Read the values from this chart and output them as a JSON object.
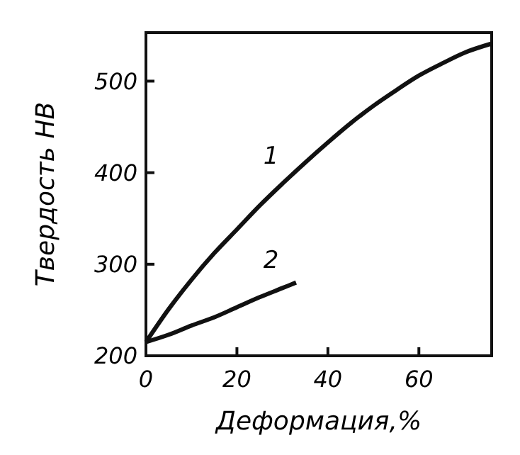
{
  "chart_data": {
    "type": "line",
    "xlabel": "Деформация,%",
    "ylabel": "Твердость НВ",
    "xlim": [
      0,
      76
    ],
    "ylim": [
      200,
      553
    ],
    "xticks": [
      0,
      20,
      40,
      60
    ],
    "yticks": [
      200,
      300,
      400,
      500
    ],
    "grid": false,
    "legend": false,
    "marker": "none",
    "line_style": "solid",
    "series": [
      {
        "name": "1",
        "color": "#111111",
        "x": [
          0,
          5,
          10,
          15,
          20,
          25,
          30,
          35,
          40,
          45,
          50,
          55,
          60,
          65,
          70,
          76
        ],
        "values": [
          215,
          251,
          283,
          312,
          338,
          364,
          388,
          411,
          433,
          454,
          473,
          490,
          506,
          519,
          531,
          541
        ]
      },
      {
        "name": "2",
        "color": "#111111",
        "x": [
          0,
          5,
          10,
          15,
          20,
          25,
          30,
          33
        ],
        "values": [
          215,
          223,
          233,
          242,
          253,
          264,
          274,
          280
        ]
      }
    ]
  }
}
